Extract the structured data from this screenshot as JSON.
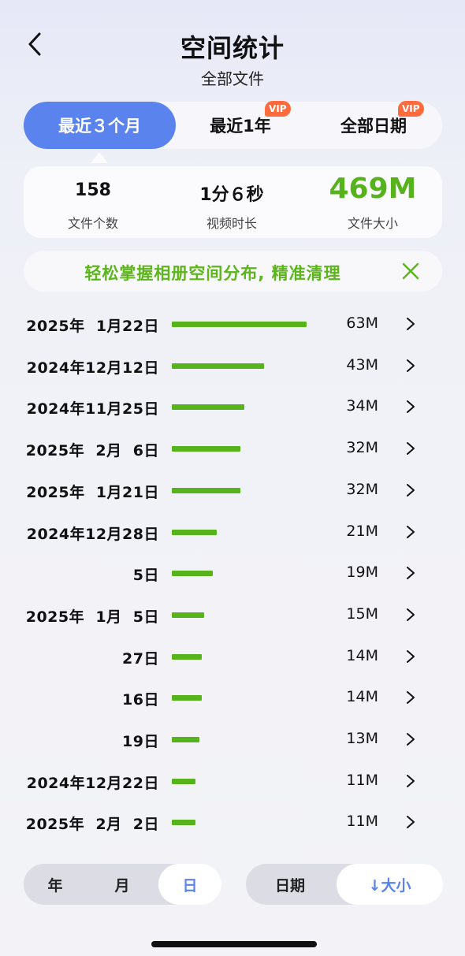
{
  "header": {
    "title": "空间统计",
    "subtitle": "全部文件"
  },
  "tabs": [
    {
      "label": "最近３个月",
      "vip": ""
    },
    {
      "label": "最近1年",
      "vip": "VIP"
    },
    {
      "label": "全部日期",
      "vip": "VIP"
    }
  ],
  "summary": {
    "count_value": "158",
    "count_label": "文件个数",
    "duration_value": "1分６秒",
    "duration_label": "视频时长",
    "size_value": "469M",
    "size_label": "文件大小"
  },
  "banner": {
    "text": "轻松掌握相册空间分布, 精准清理"
  },
  "rows": [
    {
      "date": "2025年  1月22日",
      "size": "63M",
      "mb": 63
    },
    {
      "date": "2024年12月12日",
      "size": "43M",
      "mb": 43
    },
    {
      "date": "2024年11月25日",
      "size": "34M",
      "mb": 34
    },
    {
      "date": "2025年  2月  6日",
      "size": "32M",
      "mb": 32
    },
    {
      "date": "2025年  1月21日",
      "size": "32M",
      "mb": 32
    },
    {
      "date": "2024年12月28日",
      "size": "21M",
      "mb": 21
    },
    {
      "date": "5日",
      "size": "19M",
      "mb": 19
    },
    {
      "date": "2025年  1月  5日",
      "size": "15M",
      "mb": 15
    },
    {
      "date": "27日",
      "size": "14M",
      "mb": 14
    },
    {
      "date": "16日",
      "size": "14M",
      "mb": 14
    },
    {
      "date": "19日",
      "size": "13M",
      "mb": 13
    },
    {
      "date": "2024年12月22日",
      "size": "11M",
      "mb": 11
    },
    {
      "date": "2025年  2月  2日",
      "size": "11M",
      "mb": 11
    }
  ],
  "granularity": {
    "year": "年",
    "month": "月",
    "day": "日",
    "selected": "day"
  },
  "sort": {
    "date": "日期",
    "size": "↓大小",
    "selected": "size"
  },
  "colors": {
    "accent": "#5a83ee",
    "green": "#56b31b",
    "vip": "#ff6b3d"
  },
  "icons": {
    "back": "chevron-left-icon",
    "close": "close-icon",
    "row": "chevron-right-icon"
  }
}
